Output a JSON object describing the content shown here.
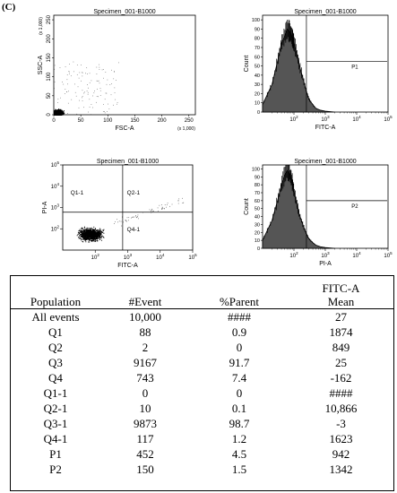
{
  "panel_label": "(C)",
  "chart_data": [
    {
      "type": "scatter",
      "title": "Specimen_001-B1000",
      "xlabel": "FSC-A",
      "ylabel": "SSC-A",
      "x_scale_note": "(x 1,000)",
      "y_scale_note": "(x 1,000)",
      "xlim": [
        0,
        262
      ],
      "ylim": [
        0,
        262
      ],
      "x_ticks": [
        "0",
        "50",
        "100",
        "150",
        "200",
        "250"
      ],
      "y_ticks": [
        "0",
        "50",
        "100",
        "150",
        "200",
        "250"
      ],
      "note": "dense population near origin (FSC-A 0–40, SSC-A 0–40)"
    },
    {
      "type": "area",
      "title": "Specimen_001-B1000",
      "xlabel": "FITC-A",
      "ylabel": "Count",
      "x_scale": "log",
      "xlim": [
        10,
        100000
      ],
      "ylim": [
        0,
        105
      ],
      "y_ticks": [
        "0",
        "10",
        "20",
        "30",
        "40",
        "50",
        "60",
        "70",
        "80",
        "90",
        "100"
      ],
      "x_ticks": [
        "10^2",
        "10^3",
        "10^4",
        "10^5"
      ],
      "gate": {
        "name": "P1",
        "x_from": 250,
        "x_to": 100000,
        "y": 55
      },
      "histogram": {
        "x": [
          10,
          20,
          30,
          40,
          50,
          60,
          70,
          80,
          90,
          100,
          120,
          150,
          200,
          250,
          300,
          400,
          500,
          700,
          1000,
          2000
        ],
        "y": [
          8,
          30,
          55,
          75,
          82,
          90,
          88,
          85,
          80,
          75,
          65,
          50,
          35,
          22,
          14,
          8,
          4,
          2,
          1,
          0
        ]
      }
    },
    {
      "type": "scatter",
      "title": "Specimen_001-B1000",
      "xlabel": "FITC-A",
      "ylabel": "PI-A",
      "x_scale": "log",
      "y_scale": "log",
      "xlim": [
        10,
        100000
      ],
      "ylim": [
        10,
        100000
      ],
      "x_ticks": [
        "10^2",
        "10^3",
        "10^4",
        "10^5"
      ],
      "y_ticks": [
        "10^2",
        "10^3",
        "10^4",
        "10^5"
      ],
      "quadrant_split": {
        "x": 700,
        "y": 600
      },
      "quadrants": [
        "Q1-1",
        "Q2-1",
        "Q4-1"
      ],
      "note": "dense population in lower-left quadrant (Q3-1)"
    },
    {
      "type": "area",
      "title": "Specimen_001-B1000",
      "xlabel": "PI-A",
      "ylabel": "Count",
      "x_scale": "log",
      "xlim": [
        10,
        100000
      ],
      "ylim": [
        0,
        105
      ],
      "y_ticks": [
        "0",
        "10",
        "20",
        "30",
        "40",
        "50",
        "60",
        "70",
        "80",
        "90",
        "100"
      ],
      "x_ticks": [
        "10^2",
        "10^3",
        "10^4",
        "10^5"
      ],
      "gate": {
        "name": "P2",
        "x_from": 250,
        "x_to": 100000,
        "y": 60
      },
      "histogram": {
        "x": [
          10,
          20,
          30,
          40,
          50,
          60,
          70,
          80,
          90,
          100,
          120,
          150,
          200,
          250,
          300,
          400,
          500,
          700,
          1000,
          2000
        ],
        "y": [
          10,
          35,
          60,
          80,
          92,
          98,
          95,
          90,
          82,
          72,
          58,
          42,
          28,
          18,
          12,
          7,
          4,
          2,
          1,
          0
        ]
      }
    },
    {
      "type": "table",
      "columns": [
        "Population",
        "#Event",
        "%Parent",
        "FITC-A Mean"
      ],
      "column_header_lines": [
        [
          "Population"
        ],
        [
          "#Event"
        ],
        [
          "%Parent"
        ],
        [
          "FITC-A",
          "Mean"
        ]
      ],
      "rows": [
        [
          "All events",
          "10,000",
          "####",
          "27"
        ],
        [
          "Q1",
          "88",
          "0.9",
          "1874"
        ],
        [
          "Q2",
          "2",
          "0",
          "849"
        ],
        [
          "Q3",
          "9167",
          "91.7",
          "25"
        ],
        [
          "Q4",
          "743",
          "7.4",
          "-162"
        ],
        [
          "Q1-1",
          "0",
          "0",
          "####"
        ],
        [
          "Q2-1",
          "10",
          "0.1",
          "10,866"
        ],
        [
          "Q3-1",
          "9873",
          "98.7",
          "-3"
        ],
        [
          "Q4-1",
          "117",
          "1.2",
          "1623"
        ],
        [
          "P1",
          "452",
          "4.5",
          "942"
        ],
        [
          "P2",
          "150",
          "1.5",
          "1342"
        ]
      ]
    }
  ]
}
